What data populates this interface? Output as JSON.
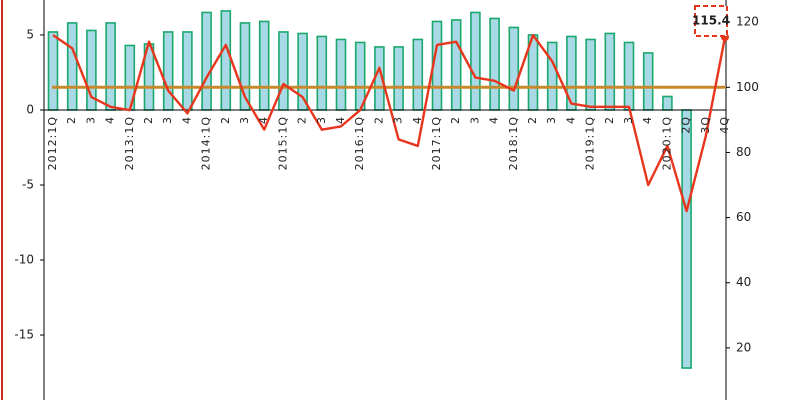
{
  "chart_data": {
    "type": "bar-line",
    "categories": [
      "2012:1Q",
      "2",
      "3",
      "4",
      "2013:1Q",
      "2",
      "3",
      "4",
      "2014:1Q",
      "2",
      "3",
      "4",
      "2015:1Q",
      "2",
      "3",
      "4",
      "2016:1Q",
      "2",
      "3",
      "4",
      "2017:1Q",
      "2",
      "3",
      "4",
      "2018:1Q",
      "2",
      "3",
      "4",
      "2019:1Q",
      "2",
      "3",
      "4",
      "2020:1Q",
      "2Q",
      "3Q",
      "4Q"
    ],
    "series": [
      {
        "type": "bar",
        "axis": "y",
        "color": "#a9d9e6",
        "edge": "#1aa86c",
        "values": [
          5.2,
          5.8,
          5.3,
          5.8,
          4.3,
          4.4,
          5.2,
          5.2,
          6.5,
          6.6,
          5.8,
          5.9,
          5.2,
          5.1,
          4.9,
          4.7,
          4.5,
          4.2,
          4.2,
          4.7,
          5.9,
          6.0,
          6.5,
          6.1,
          5.5,
          5.0,
          4.5,
          4.9,
          4.7,
          5.1,
          4.5,
          3.8,
          0.9,
          -17.2,
          null,
          null
        ]
      },
      {
        "type": "line",
        "axis": "y2",
        "color": "#e8361e",
        "values": [
          116,
          112,
          97,
          94,
          93,
          114,
          99,
          92,
          103,
          113,
          97,
          87,
          101,
          97,
          87,
          88,
          93,
          106,
          84,
          82,
          113,
          114,
          103,
          102,
          99,
          116,
          108,
          95,
          94,
          94,
          94,
          70,
          82,
          62,
          85,
          115.4
        ]
      }
    ],
    "reference_line": {
      "value": 100,
      "axis": "y2",
      "color": "#c8892c"
    },
    "annotation": {
      "text": "115.4",
      "color": "#e8361e"
    },
    "ylim": [
      -19.33,
      7.33
    ],
    "yticks": [
      5,
      0,
      -5,
      -10,
      -15
    ],
    "y2lim": [
      4,
      126.8
    ],
    "y2ticks": [
      120,
      100,
      80,
      60,
      40,
      20
    ]
  }
}
